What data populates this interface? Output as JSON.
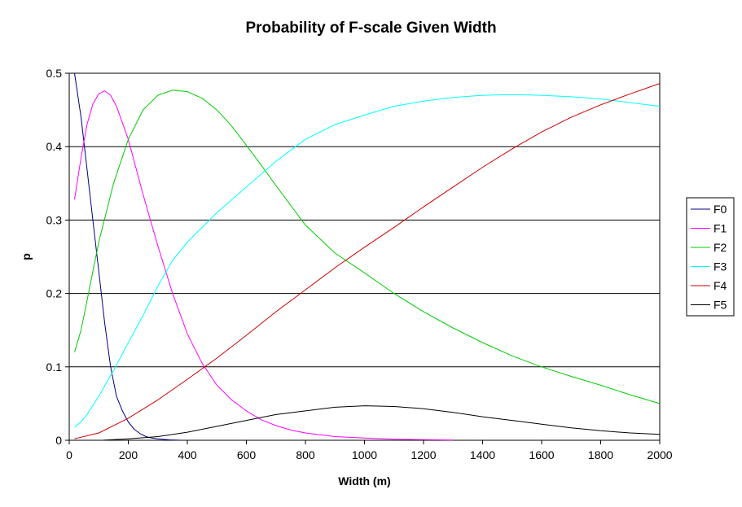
{
  "chart_data": {
    "type": "line",
    "title": "Probability of F-scale Given Width",
    "xlabel": "Width (m)",
    "ylabel": "p",
    "xlim": [
      0,
      2000
    ],
    "ylim": [
      0,
      0.5
    ],
    "xticks": [
      0,
      200,
      400,
      600,
      800,
      1000,
      1200,
      1400,
      1600,
      1800,
      2000
    ],
    "yticks": [
      0,
      0.1,
      0.2,
      0.3,
      0.4,
      0.5
    ],
    "grid": "horizontal",
    "legend_position": "right",
    "series": [
      {
        "name": "F0",
        "color": "#000080",
        "x": [
          18,
          40,
          60,
          80,
          100,
          120,
          140,
          160,
          180,
          200,
          220,
          240,
          260,
          280,
          300,
          340,
          380
        ],
        "y": [
          0.5,
          0.44,
          0.37,
          0.3,
          0.23,
          0.16,
          0.1,
          0.06,
          0.04,
          0.025,
          0.015,
          0.009,
          0.005,
          0.003,
          0.002,
          0.0005,
          0.0
        ]
      },
      {
        "name": "F1",
        "color": "#ff00ff",
        "x": [
          18,
          40,
          60,
          80,
          100,
          120,
          140,
          160,
          200,
          250,
          300,
          350,
          400,
          450,
          500,
          550,
          600,
          650,
          700,
          750,
          800,
          900,
          1000,
          1100,
          1200,
          1300
        ],
        "y": [
          0.328,
          0.385,
          0.43,
          0.458,
          0.472,
          0.476,
          0.47,
          0.455,
          0.41,
          0.335,
          0.265,
          0.2,
          0.145,
          0.105,
          0.075,
          0.055,
          0.04,
          0.028,
          0.02,
          0.014,
          0.01,
          0.005,
          0.003,
          0.0015,
          0.0008,
          0.0003
        ]
      },
      {
        "name": "F2",
        "color": "#00cc00",
        "x": [
          18,
          40,
          60,
          80,
          100,
          150,
          200,
          250,
          300,
          350,
          400,
          450,
          500,
          550,
          600,
          650,
          700,
          800,
          900,
          1000,
          1100,
          1200,
          1300,
          1400,
          1500,
          1600,
          1700,
          1800,
          1900,
          2000
        ],
        "y": [
          0.12,
          0.15,
          0.19,
          0.23,
          0.27,
          0.35,
          0.41,
          0.45,
          0.47,
          0.477,
          0.475,
          0.466,
          0.45,
          0.428,
          0.402,
          0.375,
          0.347,
          0.293,
          0.255,
          0.228,
          0.2,
          0.175,
          0.153,
          0.133,
          0.115,
          0.1,
          0.087,
          0.075,
          0.062,
          0.05
        ]
      },
      {
        "name": "F3",
        "color": "#00ffff",
        "x": [
          18,
          40,
          60,
          100,
          150,
          200,
          250,
          300,
          350,
          400,
          500,
          600,
          700,
          800,
          900,
          1000,
          1100,
          1200,
          1300,
          1400,
          1500,
          1600,
          1700,
          1800,
          1900,
          2000
        ],
        "y": [
          0.018,
          0.025,
          0.035,
          0.06,
          0.095,
          0.133,
          0.17,
          0.21,
          0.245,
          0.27,
          0.31,
          0.345,
          0.38,
          0.41,
          0.43,
          0.443,
          0.455,
          0.462,
          0.467,
          0.47,
          0.471,
          0.47,
          0.468,
          0.465,
          0.46,
          0.455
        ]
      },
      {
        "name": "F4",
        "color": "#cc0000",
        "x": [
          18,
          100,
          200,
          300,
          400,
          500,
          600,
          700,
          800,
          900,
          1000,
          1100,
          1200,
          1300,
          1400,
          1500,
          1600,
          1700,
          1800,
          1900,
          2000
        ],
        "y": [
          0.002,
          0.01,
          0.03,
          0.055,
          0.083,
          0.112,
          0.143,
          0.175,
          0.205,
          0.235,
          0.263,
          0.29,
          0.318,
          0.345,
          0.372,
          0.397,
          0.42,
          0.44,
          0.457,
          0.472,
          0.486
        ]
      },
      {
        "name": "F5",
        "color": "#000000",
        "x": [
          110,
          200,
          300,
          400,
          500,
          600,
          700,
          800,
          900,
          1000,
          1100,
          1200,
          1300,
          1400,
          1500,
          1600,
          1700,
          1800,
          1900,
          2000
        ],
        "y": [
          0.0,
          0.002,
          0.005,
          0.011,
          0.019,
          0.027,
          0.035,
          0.04,
          0.045,
          0.047,
          0.046,
          0.043,
          0.038,
          0.032,
          0.027,
          0.022,
          0.017,
          0.013,
          0.01,
          0.008
        ]
      }
    ]
  }
}
